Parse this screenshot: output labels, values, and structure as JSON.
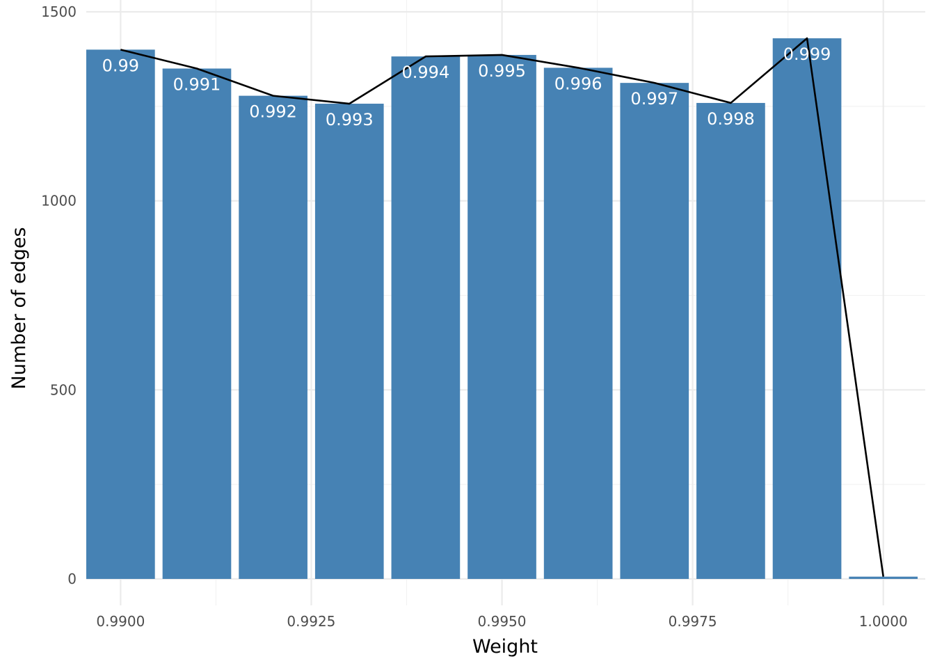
{
  "chart_data": {
    "type": "bar",
    "title": "",
    "xlabel": "Weight",
    "ylabel": "Number of edges",
    "x": [
      0.99,
      0.991,
      0.992,
      0.993,
      0.994,
      0.995,
      0.996,
      0.997,
      0.998,
      0.999,
      1.0
    ],
    "values": [
      1400,
      1350,
      1278,
      1257,
      1382,
      1386,
      1352,
      1312,
      1259,
      1430,
      6
    ],
    "bar_labels": [
      "0.99",
      "0.991",
      "0.992",
      "0.993",
      "0.994",
      "0.995",
      "0.996",
      "0.997",
      "0.998",
      "0.999",
      ""
    ],
    "line_values": [
      1400,
      1350,
      1278,
      1257,
      1382,
      1386,
      1352,
      1312,
      1259,
      1430,
      6
    ],
    "xlim": [
      0.98955,
      1.00055
    ],
    "ylim": [
      -70,
      1500
    ],
    "x_ticks": [
      0.99,
      0.9925,
      0.995,
      0.9975,
      1.0
    ],
    "x_tick_labels": [
      "0.9900",
      "0.9925",
      "0.9950",
      "0.9975",
      "1.0000"
    ],
    "y_ticks": [
      0,
      500,
      1000,
      1500
    ],
    "y_tick_labels": [
      "0",
      "500",
      "1000",
      "1500"
    ],
    "grid": true,
    "legend": "none",
    "colors": {
      "bar": "#4682b4",
      "line": "#000000",
      "bar_label": "#ffffff"
    }
  }
}
